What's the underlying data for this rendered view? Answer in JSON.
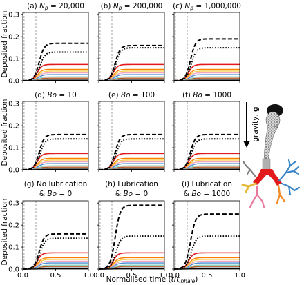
{
  "figure": {
    "ylabel": "Deposited fraction",
    "xlabel": "Normalised time (",
    "xlabel_math": "t",
    "xlabel_slash": "/",
    "xlabel_math2": "t",
    "xlabel_sub": "inhale",
    "xlabel_close": ")",
    "gravity_label": "gravity, ",
    "gravity_vec": "g"
  },
  "chart_data": [
    {
      "type": "line",
      "title_pre": "(a) ",
      "title_math": "N",
      "title_sub": "p",
      "title_post": " =  20,000",
      "dash": 0.17,
      "dot": 0.13
    },
    {
      "type": "line",
      "title_pre": "(b) ",
      "title_math": "N",
      "title_sub": "p",
      "title_post": " = 200,000",
      "dash": 0.16,
      "dot": 0.15
    },
    {
      "type": "line",
      "title_pre": "(c) ",
      "title_math": "N",
      "title_sub": "p",
      "title_post": " = 1,000,000",
      "dash": 0.19,
      "dot": 0.15
    },
    {
      "type": "line",
      "title_pre": "(d) ",
      "title_math": "Bo",
      "title_post": " = 10",
      "dash": 0.16,
      "dot": 0.14
    },
    {
      "type": "line",
      "title_pre": "(e) ",
      "title_math": "Bo",
      "title_post": " = 100",
      "dash": 0.16,
      "dot": 0.14
    },
    {
      "type": "line",
      "title_pre": "(f) ",
      "title_math": "Bo",
      "title_post": " = 1000",
      "dash": 0.16,
      "dot": 0.14
    },
    {
      "type": "line",
      "title_pre": "(g) No lubrication",
      "title_line2_pre": "& ",
      "title_line2_math": "Bo",
      "title_line2_post": " = 0",
      "dash": 0.16,
      "dot": 0.14
    },
    {
      "type": "line",
      "title_pre": "(h) Lubrication",
      "title_line2_pre": "& ",
      "title_line2_math": "Bo",
      "title_line2_post": " = 0",
      "dash": 0.29,
      "dot": 0.15
    },
    {
      "type": "line",
      "title_pre": "(i) Lubrication",
      "title_line2_pre": "& ",
      "title_line2_math": "Bo",
      "title_line2_post": " = 1000",
      "dash": 0.25,
      "dot": 0.15
    }
  ],
  "axes": {
    "xlim": [
      0,
      1.0
    ],
    "ylim": [
      0,
      0.31
    ],
    "xticks": [
      0.0,
      0.5,
      1.0
    ],
    "xtick_labels": [
      "0.0",
      "0.5",
      "1.0"
    ],
    "yticks": [
      0.0,
      0.1,
      0.2,
      0.3
    ],
    "ytick_labels": [
      "0.0",
      "0.1",
      "0.2",
      "0.3"
    ],
    "vlines_x": [
      0.02,
      0.2
    ]
  },
  "series_colors": {
    "dashed": "#000000",
    "dotted": "#000000",
    "solid": [
      "#e31a1c",
      "#ff7f00",
      "#f6d04d",
      "#f4a6c0",
      "#4b91d6",
      "#8dd3c7",
      "#b15928",
      "#999999",
      "#000000"
    ]
  },
  "solid_levels": [
    0.074,
    0.052,
    0.044,
    0.036,
    0.028,
    0.018,
    0.012,
    0.006,
    0.002
  ]
}
